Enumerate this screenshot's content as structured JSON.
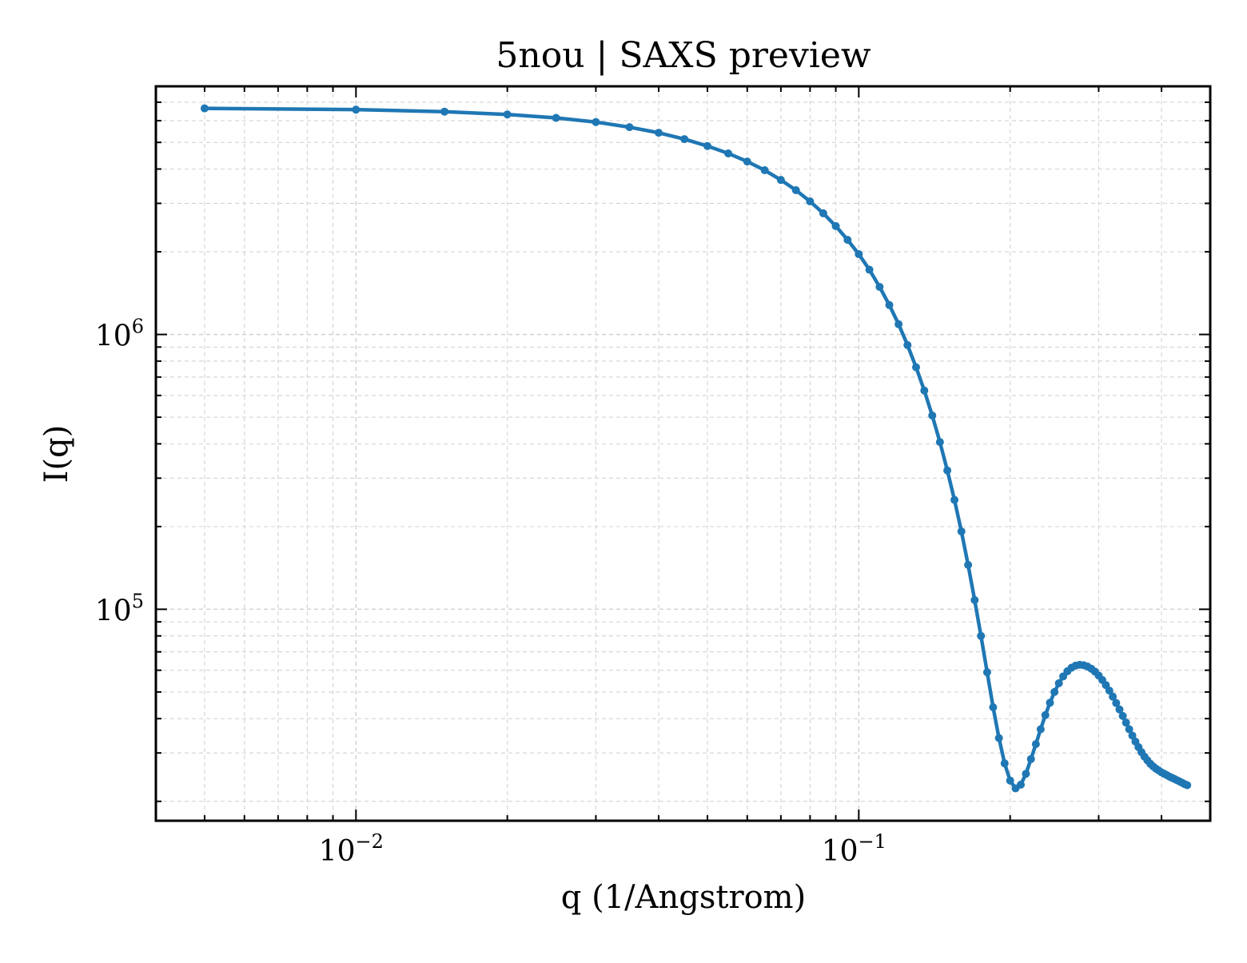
{
  "chart_data": {
    "type": "line",
    "title": "5nou | SAXS preview",
    "xlabel": "q (1/Angstrom)",
    "ylabel": "I(q)",
    "xscale": "log",
    "yscale": "log",
    "xlim": [
      0.004,
      0.5
    ],
    "ylim": [
      17000,
      8000000
    ],
    "grid": true,
    "x_ticks": [
      {
        "value": 0.01,
        "base": "10",
        "exp": "−2"
      },
      {
        "value": 0.1,
        "base": "10",
        "exp": "−1"
      }
    ],
    "y_ticks": [
      {
        "value": 100000,
        "base": "10",
        "exp": "5"
      },
      {
        "value": 1000000,
        "base": "10",
        "exp": "6"
      }
    ],
    "colors": {
      "series": "#1f77b4",
      "grid": "#d3d3d3",
      "axes": "#000000"
    },
    "series": [
      {
        "x": [
          0.005,
          0.01,
          0.015,
          0.02,
          0.025,
          0.03,
          0.035,
          0.04,
          0.045,
          0.05,
          0.055,
          0.06,
          0.065,
          0.07,
          0.075,
          0.08,
          0.085,
          0.09,
          0.095,
          0.1,
          0.105,
          0.11,
          0.115,
          0.12,
          0.125,
          0.13,
          0.135,
          0.14,
          0.145,
          0.15,
          0.155,
          0.16,
          0.165,
          0.17,
          0.175,
          0.18,
          0.185,
          0.19,
          0.195,
          0.2,
          0.205,
          0.21,
          0.215,
          0.22,
          0.225,
          0.23,
          0.235,
          0.24,
          0.245,
          0.25,
          0.255,
          0.26,
          0.265,
          0.27,
          0.275,
          0.28,
          0.285,
          0.29,
          0.295,
          0.3,
          0.305,
          0.31,
          0.315,
          0.32,
          0.325,
          0.33,
          0.335,
          0.34,
          0.345,
          0.35,
          0.355,
          0.36,
          0.365,
          0.37,
          0.375,
          0.38,
          0.385,
          0.39,
          0.395,
          0.4,
          0.405,
          0.41,
          0.415,
          0.42,
          0.425,
          0.43,
          0.435,
          0.44,
          0.445,
          0.45
        ],
        "y": [
          6650000,
          6580000,
          6470000,
          6320000,
          6140000,
          5930000,
          5680000,
          5420000,
          5140000,
          4850000,
          4560000,
          4260000,
          3960000,
          3650000,
          3350000,
          3050000,
          2760000,
          2480000,
          2210000,
          1960000,
          1720000,
          1490000,
          1280000,
          1090000,
          915000,
          760000,
          625000,
          507000,
          406000,
          320000,
          250000,
          192000,
          145000,
          108000,
          80000,
          59000,
          44000,
          34000,
          27500,
          23800,
          22300,
          23000,
          25200,
          28500,
          32300,
          36600,
          41200,
          45700,
          50000,
          53800,
          57000,
          59500,
          61300,
          62400,
          62800,
          62600,
          61900,
          60800,
          59300,
          57400,
          55300,
          53000,
          50600,
          48100,
          45600,
          43200,
          40900,
          38700,
          36600,
          34700,
          33000,
          31500,
          30200,
          29100,
          28200,
          27400,
          26800,
          26300,
          25900,
          25500,
          25200,
          24900,
          24600,
          24350,
          24100,
          23850,
          23600,
          23350,
          23100,
          22900
        ]
      }
    ]
  }
}
